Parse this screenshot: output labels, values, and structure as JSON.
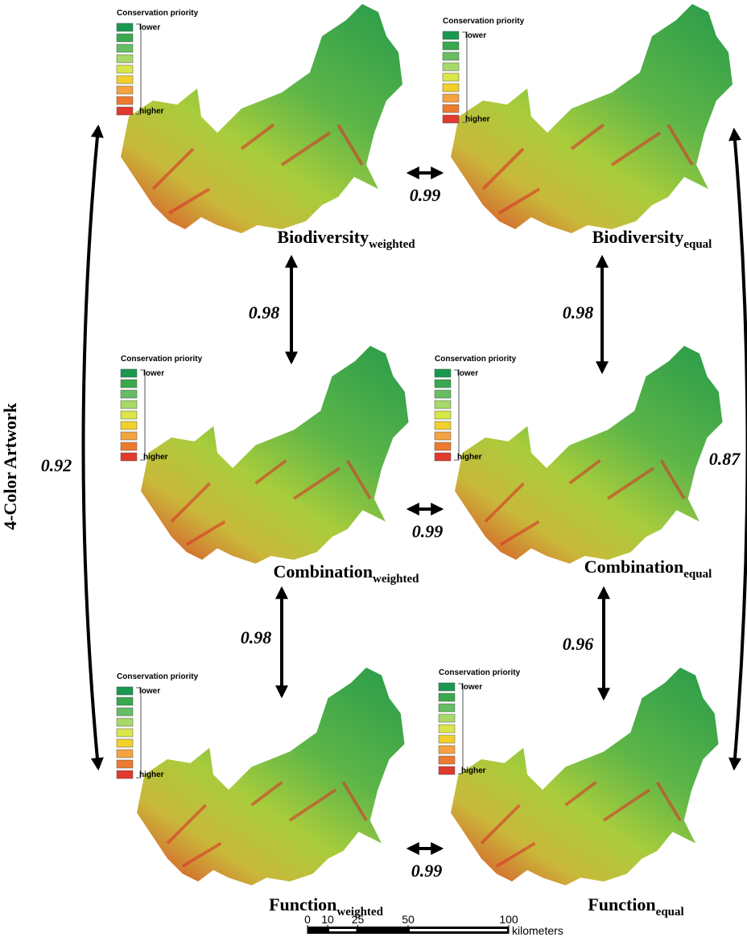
{
  "side_label": "4-Color Artwork",
  "panels": [
    {
      "legend": {
        "title": "Conservation priority",
        "low": "lower",
        "high": "higher"
      },
      "name": "Biodiversity",
      "subscript": "weighted"
    },
    {
      "legend": {
        "title": "Conservation priority",
        "low": "lower",
        "high": "higher"
      },
      "name": "Biodiversity",
      "subscript": "equal"
    },
    {
      "legend": {
        "title": "Conservation priority",
        "low": "lower",
        "high": "higher"
      },
      "name": "Combination",
      "subscript": "weighted"
    },
    {
      "legend": {
        "title": "Conservation priority",
        "low": "lower",
        "high": "higher"
      },
      "name": "Combination",
      "subscript": "equal"
    },
    {
      "legend": {
        "title": "Conservation priority",
        "low": "lower",
        "high": "higher"
      },
      "name": "Function",
      "subscript": "weighted"
    },
    {
      "legend": {
        "title": "Conservation priority",
        "low": "lower",
        "high": "higher"
      },
      "name": "Function",
      "subscript": "equal"
    }
  ],
  "correlations": [
    {
      "value": 0.99
    },
    {
      "value": 0.99
    },
    {
      "value": 0.99
    },
    {
      "value": 0.98
    },
    {
      "value": 0.98
    },
    {
      "value": 0.98
    },
    {
      "value": 0.96
    },
    {
      "value": 0.92
    },
    {
      "value": 0.87
    }
  ],
  "scale_bar": {
    "ticks": [
      0,
      10,
      25,
      50,
      100
    ],
    "unit": "kilometers"
  }
}
